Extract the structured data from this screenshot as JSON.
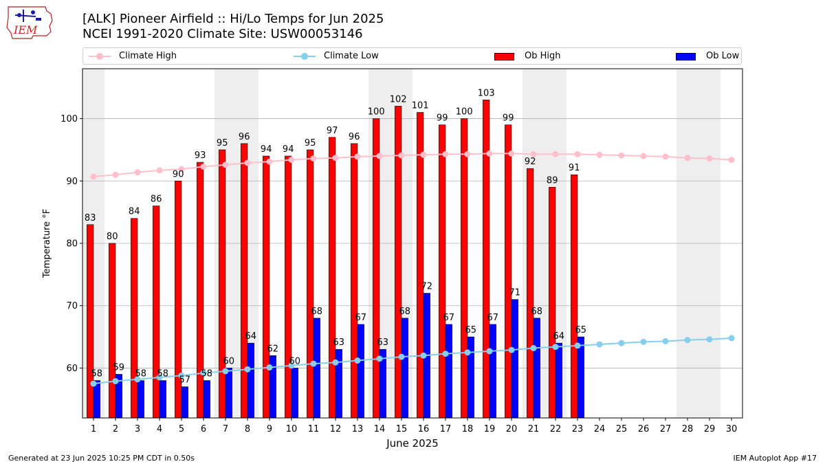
{
  "header": {
    "title_line1": "[ALK] Pioneer Airfield :: Hi/Lo Temps for Jun 2025",
    "title_line2": "NCEI 1991-2020 Climate Site: USW00053146"
  },
  "logo": {
    "text": "IEM"
  },
  "footer": {
    "generated": "Generated at 23 Jun 2025 10:25 PM CDT in 0.50s",
    "app": "IEM Autoplot App #17"
  },
  "colors": {
    "ob_high": "#ff0000",
    "ob_low": "#0000ff",
    "climate_high": "#ffc0cb",
    "climate_low": "#87ceeb",
    "weekend_shade": "#eeeeee",
    "grid": "#b0b0b0"
  },
  "chart_data": {
    "type": "bar",
    "title": "[ALK] Pioneer Airfield :: Hi/Lo Temps for Jun 2025",
    "subtitle": "NCEI 1991-2020 Climate Site: USW00053146",
    "xlabel": "June 2025",
    "ylabel": "Temperature $^\\circ$F",
    "ylim": [
      52,
      108
    ],
    "yticks": [
      60,
      70,
      80,
      90,
      100
    ],
    "grid": "horizontal",
    "legend_position": "top",
    "categories": [
      "1",
      "2",
      "3",
      "4",
      "5",
      "6",
      "7",
      "8",
      "9",
      "10",
      "11",
      "12",
      "13",
      "14",
      "15",
      "16",
      "17",
      "18",
      "19",
      "20",
      "21",
      "22",
      "23",
      "24",
      "25",
      "26",
      "27",
      "28",
      "29",
      "30"
    ],
    "shaded_days": [
      1,
      7,
      8,
      14,
      15,
      21,
      22,
      28,
      29
    ],
    "series": [
      {
        "name": "Ob High",
        "kind": "bar",
        "values": [
          83,
          80,
          84,
          86,
          90,
          93,
          95,
          96,
          94,
          94,
          95,
          97,
          96,
          100,
          102,
          101,
          99,
          100,
          103,
          99,
          92,
          89,
          91,
          null,
          null,
          null,
          null,
          null,
          null,
          null
        ]
      },
      {
        "name": "Ob Low",
        "kind": "bar",
        "values": [
          58,
          59,
          58,
          58,
          57,
          58,
          60,
          64,
          62,
          60,
          68,
          63,
          67,
          63,
          68,
          72,
          67,
          65,
          67,
          71,
          68,
          64,
          65,
          null,
          null,
          null,
          null,
          null,
          null,
          null
        ]
      },
      {
        "name": "Climate High",
        "kind": "line",
        "values": [
          90.7,
          91.0,
          91.4,
          91.7,
          91.9,
          92.3,
          92.6,
          92.9,
          93.1,
          93.4,
          93.6,
          93.7,
          93.9,
          94.0,
          94.1,
          94.2,
          94.3,
          94.3,
          94.4,
          94.4,
          94.3,
          94.3,
          94.3,
          94.2,
          94.1,
          94.0,
          93.9,
          93.7,
          93.6,
          93.4
        ]
      },
      {
        "name": "Climate Low",
        "kind": "line",
        "values": [
          57.5,
          57.9,
          58.2,
          58.5,
          58.8,
          59.2,
          59.5,
          59.8,
          60.1,
          60.4,
          60.7,
          60.9,
          61.2,
          61.5,
          61.8,
          62.0,
          62.3,
          62.5,
          62.7,
          62.9,
          63.2,
          63.4,
          63.6,
          63.8,
          64.0,
          64.2,
          64.3,
          64.5,
          64.6,
          64.8
        ]
      }
    ]
  }
}
